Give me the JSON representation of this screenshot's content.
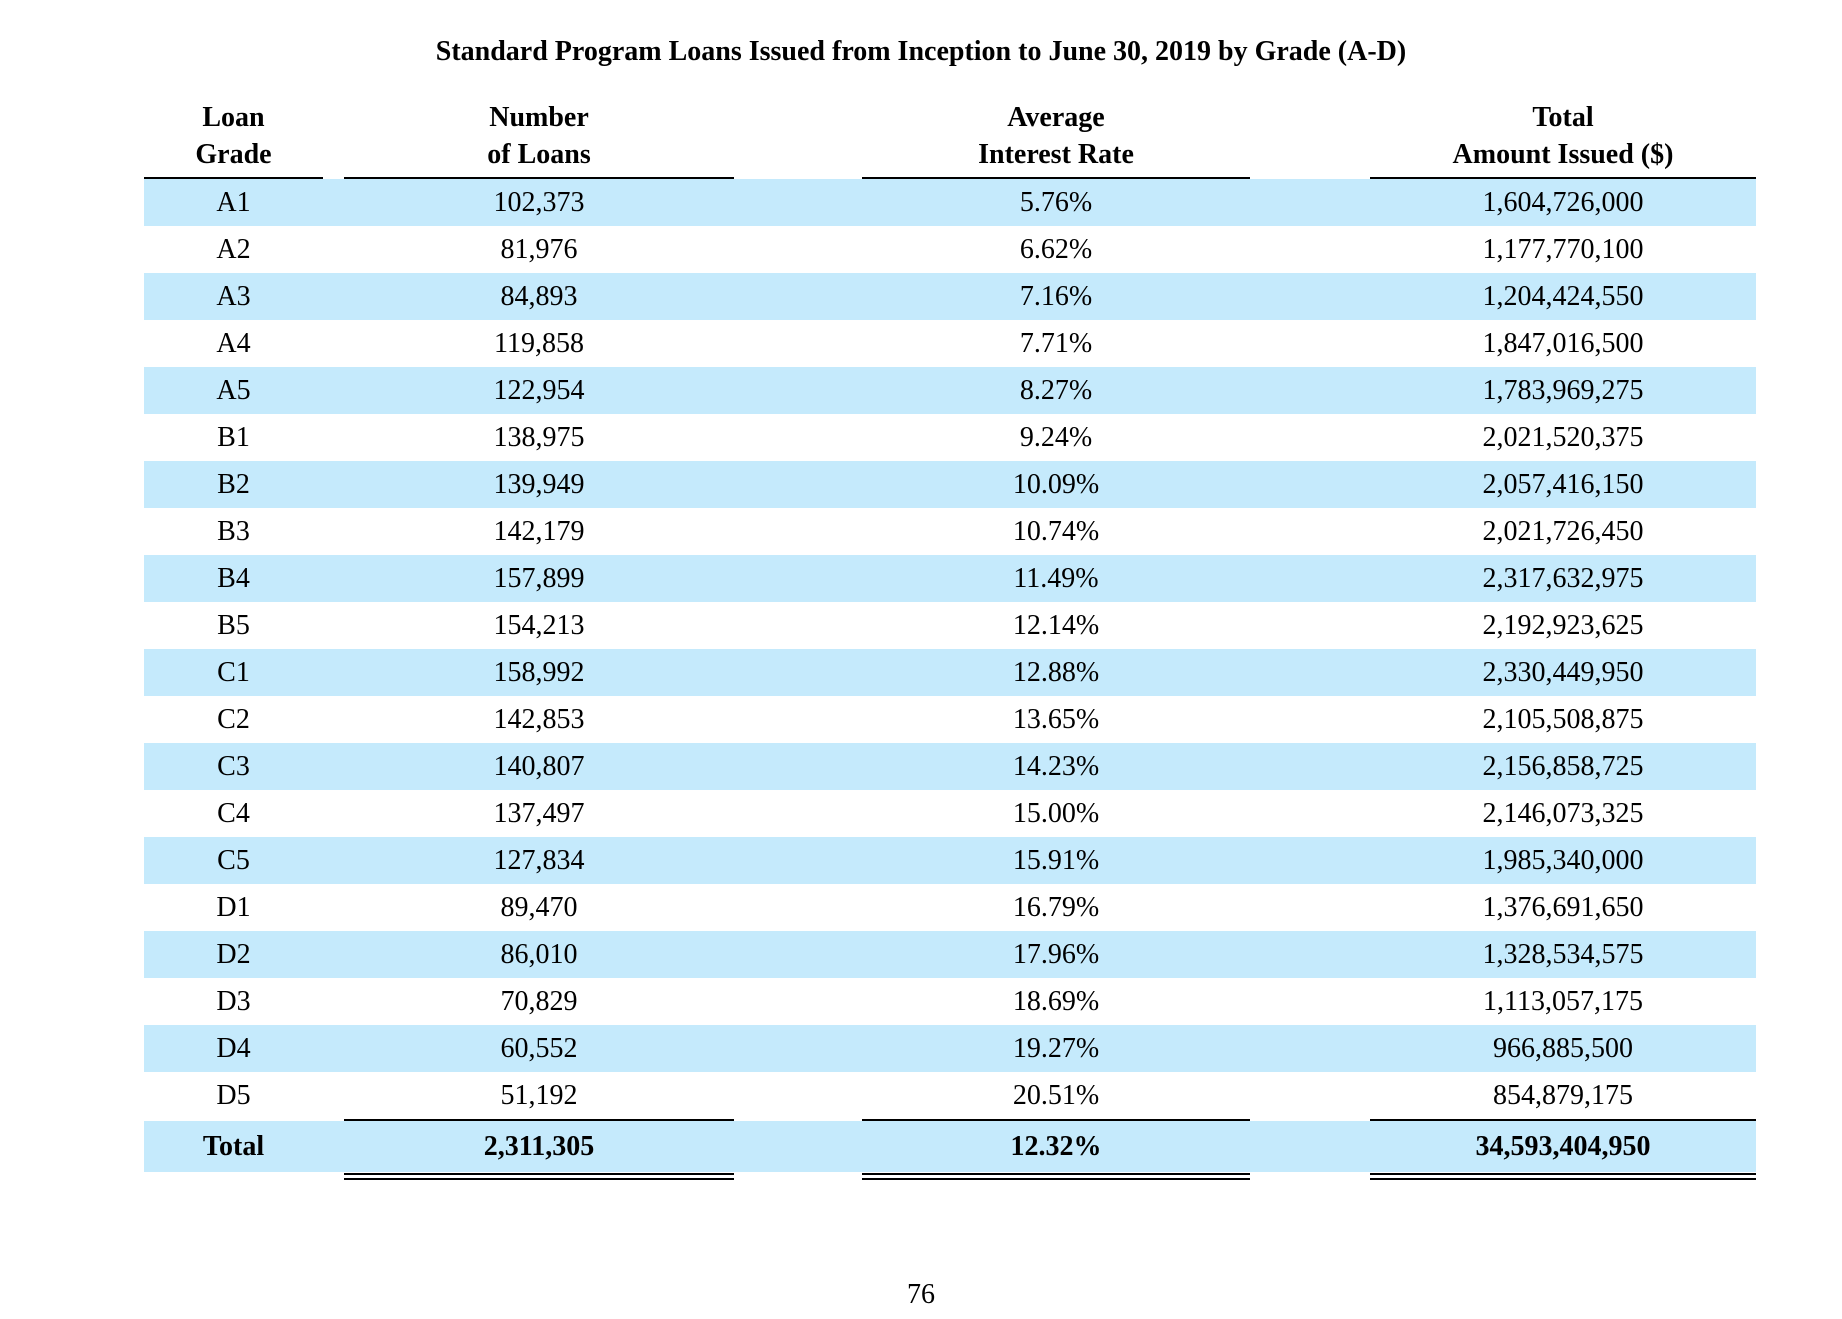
{
  "document": {
    "title": "Standard Program Loans Issued from Inception to June 30, 2019 by Grade (A-D)",
    "page_number": "76"
  },
  "table": {
    "headers": [
      {
        "line1": "Loan",
        "line2": "Grade"
      },
      {
        "line1": "Number",
        "line2": "of Loans"
      },
      {
        "line1": "Average",
        "line2": "Interest Rate"
      },
      {
        "line1": "Total",
        "line2": "Amount Issued ($)"
      }
    ],
    "rows": [
      {
        "grade": "A1",
        "loans": "102,373",
        "rate": "5.76%",
        "amount": "1,604,726,000"
      },
      {
        "grade": "A2",
        "loans": "81,976",
        "rate": "6.62%",
        "amount": "1,177,770,100"
      },
      {
        "grade": "A3",
        "loans": "84,893",
        "rate": "7.16%",
        "amount": "1,204,424,550"
      },
      {
        "grade": "A4",
        "loans": "119,858",
        "rate": "7.71%",
        "amount": "1,847,016,500"
      },
      {
        "grade": "A5",
        "loans": "122,954",
        "rate": "8.27%",
        "amount": "1,783,969,275"
      },
      {
        "grade": "B1",
        "loans": "138,975",
        "rate": "9.24%",
        "amount": "2,021,520,375"
      },
      {
        "grade": "B2",
        "loans": "139,949",
        "rate": "10.09%",
        "amount": "2,057,416,150"
      },
      {
        "grade": "B3",
        "loans": "142,179",
        "rate": "10.74%",
        "amount": "2,021,726,450"
      },
      {
        "grade": "B4",
        "loans": "157,899",
        "rate": "11.49%",
        "amount": "2,317,632,975"
      },
      {
        "grade": "B5",
        "loans": "154,213",
        "rate": "12.14%",
        "amount": "2,192,923,625"
      },
      {
        "grade": "C1",
        "loans": "158,992",
        "rate": "12.88%",
        "amount": "2,330,449,950"
      },
      {
        "grade": "C2",
        "loans": "142,853",
        "rate": "13.65%",
        "amount": "2,105,508,875"
      },
      {
        "grade": "C3",
        "loans": "140,807",
        "rate": "14.23%",
        "amount": "2,156,858,725"
      },
      {
        "grade": "C4",
        "loans": "137,497",
        "rate": "15.00%",
        "amount": "2,146,073,325"
      },
      {
        "grade": "C5",
        "loans": "127,834",
        "rate": "15.91%",
        "amount": "1,985,340,000"
      },
      {
        "grade": "D1",
        "loans": "89,470",
        "rate": "16.79%",
        "amount": "1,376,691,650"
      },
      {
        "grade": "D2",
        "loans": "86,010",
        "rate": "17.96%",
        "amount": "1,328,534,575"
      },
      {
        "grade": "D3",
        "loans": "70,829",
        "rate": "18.69%",
        "amount": "1,113,057,175"
      },
      {
        "grade": "D4",
        "loans": "60,552",
        "rate": "19.27%",
        "amount": "966,885,500"
      },
      {
        "grade": "D5",
        "loans": "51,192",
        "rate": "20.51%",
        "amount": "854,879,175"
      }
    ],
    "total": {
      "grade": "Total",
      "loans": "2,311,305",
      "rate": "12.32%",
      "amount": "34,593,404,950"
    },
    "colors": {
      "shade": "#c5eafc",
      "text": "#000000"
    }
  }
}
